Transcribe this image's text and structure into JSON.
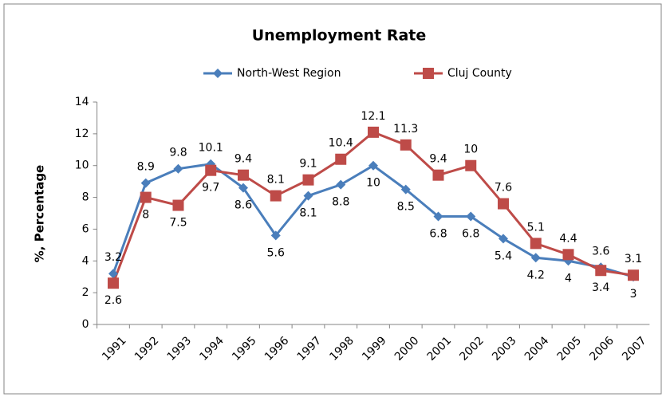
{
  "chart_data": {
    "type": "line",
    "title": "Unemployment Rate",
    "ylabel": "%, Percentage",
    "categories": [
      "1991",
      "1992",
      "1993",
      "1994",
      "1995",
      "1996",
      "1997",
      "1998",
      "1999",
      "2000",
      "2001",
      "2002",
      "2003",
      "2004",
      "2005",
      "2006",
      "2007"
    ],
    "series": [
      {
        "name": "North-West Region",
        "color": "#4a7ebb",
        "marker": "diamond",
        "values": [
          3.2,
          8.9,
          9.8,
          10.1,
          8.6,
          5.6,
          8.1,
          8.8,
          10,
          8.5,
          6.8,
          6.8,
          5.4,
          4.2,
          4,
          3.6,
          3
        ]
      },
      {
        "name": "Cluj County",
        "color": "#be4b48",
        "marker": "square",
        "values": [
          2.6,
          8,
          7.5,
          9.7,
          9.4,
          8.1,
          9.1,
          10.4,
          12.1,
          11.3,
          9.4,
          10,
          7.6,
          5.1,
          4.4,
          3.4,
          3.1
        ]
      }
    ],
    "ylim": [
      0,
      14
    ],
    "yticks": [
      0,
      2,
      4,
      6,
      8,
      10,
      12,
      14
    ],
    "legend": "top"
  }
}
